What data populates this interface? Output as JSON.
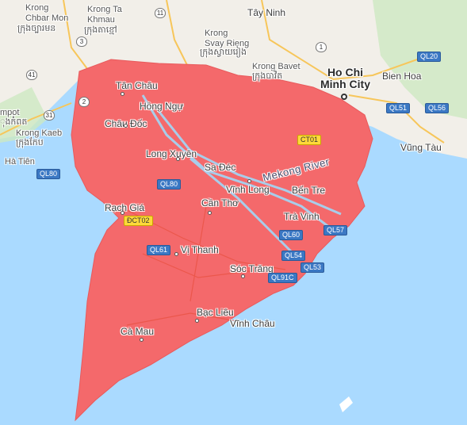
{
  "map": {
    "colors": {
      "water": "#aadaff",
      "land": "#f2efe9",
      "flood_overlay": "#f4696b",
      "road": "#f7c65a",
      "vegetation": "#cde8c2"
    },
    "places": [
      {
        "id": "krong-chbar-mon",
        "text": "Krong\nChbar Mon",
        "kind": "small"
      },
      {
        "id": "krong-ta-khmau",
        "text": "Krong Ta\nKhmau",
        "kind": "small"
      },
      {
        "id": "khmau-script",
        "text": "ក្រុងតាខ្មៅ",
        "kind": "small"
      },
      {
        "id": "chbar-script",
        "text": "ក្រុងច្បារមន",
        "kind": "small"
      },
      {
        "id": "tay-ninh",
        "text": "Tây Ninh",
        "kind": "normal"
      },
      {
        "id": "krong-svay-rieng",
        "text": "Krong\nSvay Rieng",
        "kind": "small"
      },
      {
        "id": "svay-script",
        "text": "ក្រុងស្វាយរៀង",
        "kind": "small"
      },
      {
        "id": "krong-bavet",
        "text": "Krong Bavet",
        "kind": "small"
      },
      {
        "id": "bavet-script",
        "text": "ក្រុងបាវិត",
        "kind": "small"
      },
      {
        "id": "ho-chi-minh",
        "text": "Ho Chi\nMinh City",
        "kind": "big"
      },
      {
        "id": "bien-hoa",
        "text": "Bien Hoa",
        "kind": "normal"
      },
      {
        "id": "kampot",
        "text": "mpot",
        "kind": "small"
      },
      {
        "id": "kampot-script",
        "text": "ុងកំពត",
        "kind": "small"
      },
      {
        "id": "tan-chau",
        "text": "Tân Châu",
        "kind": "normal"
      },
      {
        "id": "hong-ngu",
        "text": "Hồng Ngự",
        "kind": "normal"
      },
      {
        "id": "chau-doc",
        "text": "Châu Đốc",
        "kind": "normal"
      },
      {
        "id": "krong-kaeb",
        "text": "Krong Kaeb",
        "kind": "small"
      },
      {
        "id": "kaeb-script",
        "text": "ក្រុងកែប",
        "kind": "small"
      },
      {
        "id": "ha-tien",
        "text": "Hà Tiên",
        "kind": "small"
      },
      {
        "id": "long-xuyen",
        "text": "Long Xuyên",
        "kind": "normal"
      },
      {
        "id": "sa-dec",
        "text": "Sa Đéc",
        "kind": "normal"
      },
      {
        "id": "vung-tau",
        "text": "Vũng Tàu",
        "kind": "normal"
      },
      {
        "id": "vinh-long",
        "text": "Vĩnh Long",
        "kind": "normal"
      },
      {
        "id": "ben-tre",
        "text": "Bến Tre",
        "kind": "normal"
      },
      {
        "id": "rach-gia",
        "text": "Rạch Giá",
        "kind": "normal"
      },
      {
        "id": "can-tho",
        "text": "Cần Thơ",
        "kind": "normal"
      },
      {
        "id": "tra-vinh",
        "text": "Trà Vinh",
        "kind": "normal"
      },
      {
        "id": "vi-thanh",
        "text": "Vị Thanh",
        "kind": "normal"
      },
      {
        "id": "soc-trang",
        "text": "Sóc Trăng",
        "kind": "normal"
      },
      {
        "id": "bac-lieu",
        "text": "Bạc Liêu",
        "kind": "normal"
      },
      {
        "id": "vinh-chau",
        "text": "Vĩnh Châu",
        "kind": "normal"
      },
      {
        "id": "ca-mau",
        "text": "Cà Mau",
        "kind": "normal"
      }
    ],
    "water_labels": [
      {
        "id": "mekong-river",
        "text": "Mekong River"
      }
    ],
    "shields": [
      {
        "id": "qr-3",
        "text": "3",
        "style": "circle"
      },
      {
        "id": "qr-11",
        "text": "11",
        "style": "circle"
      },
      {
        "id": "qr-41",
        "text": "41",
        "style": "circle"
      },
      {
        "id": "qr-31",
        "text": "31",
        "style": "circle"
      },
      {
        "id": "qr-2",
        "text": "2",
        "style": "circle"
      },
      {
        "id": "qr-1",
        "text": "1",
        "style": "circle"
      },
      {
        "id": "ql20",
        "text": "QL20",
        "style": "blue"
      },
      {
        "id": "ql51",
        "text": "QL51",
        "style": "blue"
      },
      {
        "id": "ql56",
        "text": "QL56",
        "style": "blue"
      },
      {
        "id": "ql80-a",
        "text": "QL80",
        "style": "blue"
      },
      {
        "id": "ql80-b",
        "text": "QL80",
        "style": "blue"
      },
      {
        "id": "ct01",
        "text": "CT01",
        "style": "yellow"
      },
      {
        "id": "dct02",
        "text": "ĐCT02",
        "style": "yellow"
      },
      {
        "id": "ql61",
        "text": "QL61",
        "style": "blue"
      },
      {
        "id": "ql60",
        "text": "QL60",
        "style": "blue"
      },
      {
        "id": "ql57",
        "text": "QL57",
        "style": "blue"
      },
      {
        "id": "ql54",
        "text": "QL54",
        "style": "blue"
      },
      {
        "id": "ql53",
        "text": "QL53",
        "style": "blue"
      },
      {
        "id": "ql91c",
        "text": "QL91C",
        "style": "blue"
      }
    ]
  }
}
